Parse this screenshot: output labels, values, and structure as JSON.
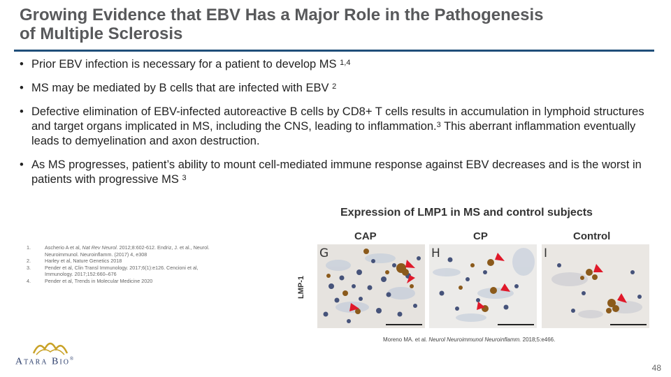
{
  "slide": {
    "title_line1": "Growing Evidence that EBV Has a Major Role in the Pathogenesis",
    "title_line2": "of Multiple Sclerosis",
    "bullets": [
      {
        "text": "Prior EBV infection is necessary for a patient to develop MS ",
        "sup": "1,4"
      },
      {
        "text": "MS may be mediated by B cells that are infected with EBV ",
        "sup": "2"
      },
      {
        "text_a": "Defective elimination of EBV-infected autoreactive B cells by CD8+ T cells results in accumulation in lymphoid structures and target organs implicated in MS, including the CNS, leading to inflammation.",
        "sup": "3",
        "text_b": " This aberrant inflammation eventually leads to demyelination and axon destruction."
      },
      {
        "text": "As MS progresses, patient’s ability to mount cell-mediated immune response against EBV decreases and is the worst in patients with progressive MS ",
        "sup": "3"
      }
    ],
    "page_number": "48"
  },
  "figure": {
    "title": "Expression of LMP1 in MS and control subjects",
    "columns": [
      "CAP",
      "CP",
      "Control"
    ],
    "row_label": "LMP-1",
    "panel_letters": [
      "G",
      "H",
      "I"
    ],
    "citation_pre": "Moreno MA. et al. ",
    "citation_journal": "Neurol Neuroimmunol Neuroinflamm.",
    "citation_post": " 2018;5:e466."
  },
  "references": [
    {
      "num": "1.",
      "pre": "Ascherio A et al, ",
      "journal": "Nat Rev Neurol.",
      "post": " 2012;8:602-612. Endriz, J. et al., Neurol. Neuroimmunol. Neuroinflamm. (2017) 4, e308"
    },
    {
      "num": "2.",
      "text": "Harley et al, Nature Genetics 2018"
    },
    {
      "num": "3.",
      "text": "Pender et al, Clin Transl Immunology. 2017;6(1):e126. Cencioni et al, Immunology. 2017;152:660–676"
    },
    {
      "num": "4.",
      "text": "Pender et al, Trends in Molecular Medicine 2020"
    }
  ],
  "logo": {
    "text": "Atara Bio",
    "mark": "®"
  },
  "colors": {
    "title": "#58595b",
    "rule": "#1f4e79",
    "logo_gold": "#c9a227",
    "logo_navy": "#2b3d6b",
    "arrow": "#e0192a",
    "stain": "#8b5a1b"
  }
}
